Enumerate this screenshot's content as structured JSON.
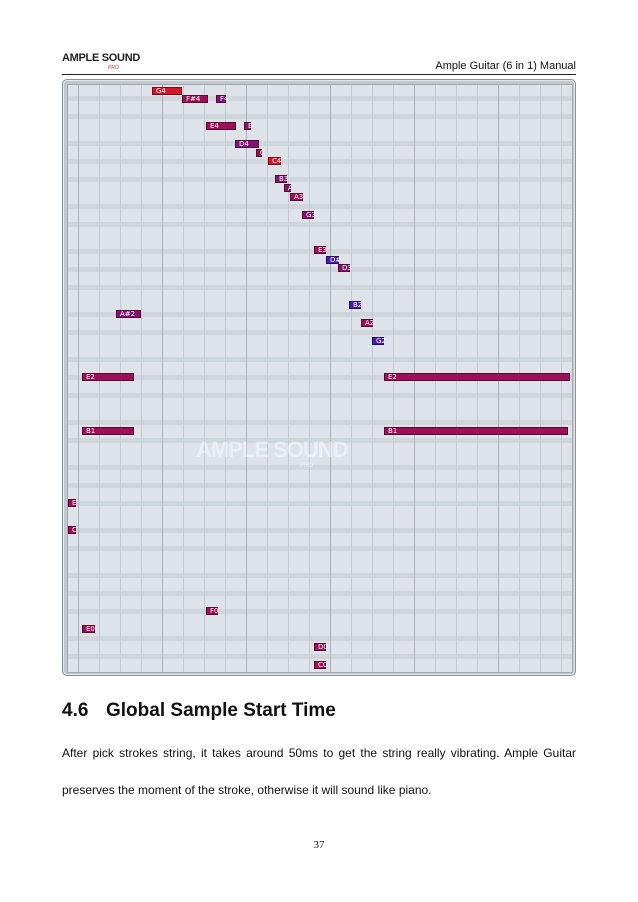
{
  "header": {
    "logo_text": "AMPLE SOUND",
    "logo_sub": "PRO",
    "running_title": "Ample Guitar (6 in 1) Manual"
  },
  "figure": {
    "watermark": "AMPLE SOUND",
    "watermark_sub": "PRO",
    "colors": {
      "magenta": "#9a1159",
      "purple": "#7c157a",
      "red": "#d81428",
      "blue": "#4a1ab2"
    },
    "notes": [
      {
        "label": "G4",
        "color": "red"
      },
      {
        "label": "F#4",
        "color": "magenta"
      },
      {
        "label": "F4",
        "color": "purple"
      },
      {
        "label": "E4",
        "color": "magenta"
      },
      {
        "label": "E",
        "color": "purple"
      },
      {
        "label": "D4",
        "color": "purple"
      },
      {
        "label": "C",
        "color": "magenta"
      },
      {
        "label": "C4",
        "color": "red"
      },
      {
        "label": "B3",
        "color": "purple"
      },
      {
        "label": "A",
        "color": "purple"
      },
      {
        "label": "A3",
        "color": "magenta"
      },
      {
        "label": "G3",
        "color": "purple"
      },
      {
        "label": "E3",
        "color": "magenta"
      },
      {
        "label": "D#",
        "color": "blue"
      },
      {
        "label": "D3",
        "color": "purple"
      },
      {
        "label": "B2",
        "color": "blue"
      },
      {
        "label": "A#2",
        "color": "purple"
      },
      {
        "label": "A2",
        "color": "magenta"
      },
      {
        "label": "G2",
        "color": "blue"
      },
      {
        "label": "E2",
        "color": "magenta"
      },
      {
        "label": "E2",
        "color": "magenta"
      },
      {
        "label": "B1",
        "color": "magenta"
      },
      {
        "label": "B1",
        "color": "magenta"
      },
      {
        "label": "E",
        "color": "magenta"
      },
      {
        "label": "C",
        "color": "magenta"
      },
      {
        "label": "F0",
        "color": "magenta"
      },
      {
        "label": "E0",
        "color": "magenta"
      },
      {
        "label": "D0",
        "color": "magenta"
      },
      {
        "label": "C0",
        "color": "magenta"
      }
    ]
  },
  "section": {
    "number": "4.6",
    "title": "Global Sample Start Time"
  },
  "body": {
    "line1": "After pick strokes string, it takes around 50ms to get the string really vibrating. Ample Guitar",
    "line2": "preserves the moment of the stroke, otherwise it will sound like piano."
  },
  "footer": {
    "page_number": "37"
  }
}
